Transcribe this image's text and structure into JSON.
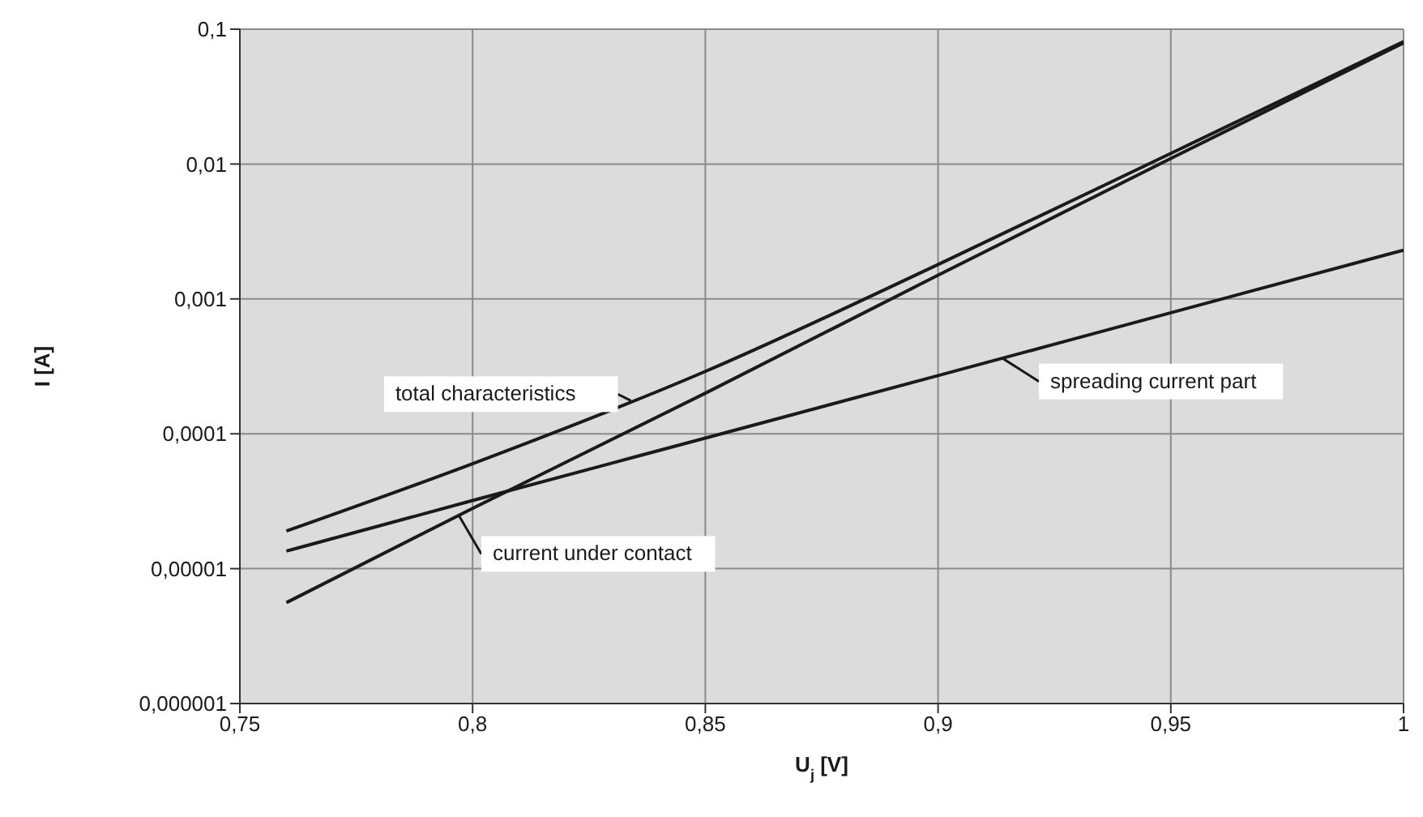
{
  "chart_data": {
    "type": "line",
    "xlabel": "U$_{j}$ [V]",
    "ylabel": "I [A]",
    "log": "y",
    "grid": true,
    "marker": "none",
    "line_style": "solid",
    "x": [
      0.76,
      0.8,
      0.85,
      0.9,
      0.95,
      1
    ],
    "xlim": [
      0.75,
      1
    ],
    "xticks": [
      {
        "value": 0.75,
        "label": "0,75"
      },
      {
        "value": 0.8,
        "label": "0,8"
      },
      {
        "value": 0.85,
        "label": "0,85"
      },
      {
        "value": 0.9,
        "label": "0,9"
      },
      {
        "value": 0.95,
        "label": "0,95"
      },
      {
        "value": 1,
        "label": "1"
      }
    ],
    "ylim": [
      1e-06,
      0.1
    ],
    "yticks": [
      {
        "value": 1e-06,
        "label": "0,000001"
      },
      {
        "value": 1e-05,
        "label": "0,00001"
      },
      {
        "value": 0.0001,
        "label": "0,0001"
      },
      {
        "value": 0.001,
        "label": "0,001"
      },
      {
        "value": 0.01,
        "label": "0,01"
      },
      {
        "value": 0.1,
        "label": "0,1"
      }
    ],
    "series": [
      {
        "color": "#1a1a1a",
        "values": [
          1.9e-05,
          6e-05,
          0.00029,
          0.0018,
          0.012,
          0.081
        ]
      },
      {
        "color": "#1a1a1a",
        "values": [
          1.35e-05,
          3.2e-05,
          9.3e-05,
          0.00027,
          0.00079,
          0.0023
        ]
      },
      {
        "color": "#1a1a1a",
        "values": [
          5.6e-06,
          2.8e-05,
          0.0002,
          0.0015,
          0.011,
          0.079
        ]
      }
    ],
    "annotations": [
      {
        "text": "total characteristics",
        "x": 0.834,
        "y": 0.000176
      },
      {
        "text": "spreading current part",
        "x": 0.914,
        "y": 0.00036
      },
      {
        "text": "current under contact",
        "x": 0.797,
        "y": 2.5e-05
      }
    ]
  }
}
